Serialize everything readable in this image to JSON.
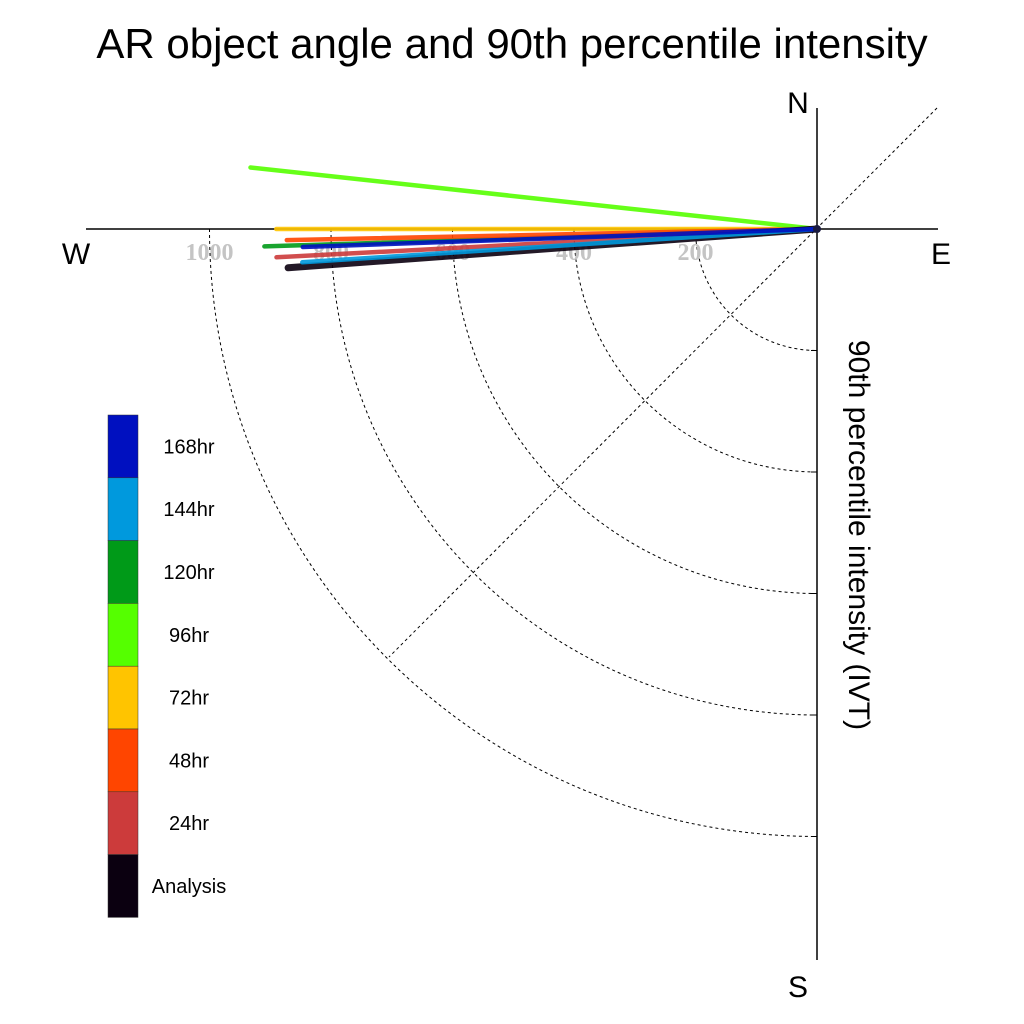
{
  "chart_data": {
    "type": "polar-vector",
    "title": "AR object angle and 90th percentile intensity",
    "radial_label": "90th percentile intensity (IVT)",
    "compass": {
      "north": "N",
      "east": "E",
      "south": "S",
      "west": "W"
    },
    "radial_ticks": [
      200,
      400,
      600,
      800,
      1000
    ],
    "radial_tick_labels": [
      "200",
      "400",
      "600",
      "800",
      "1000"
    ],
    "r_max": 1200,
    "angle_convention": "degrees counter-clockwise from west (positive = north of west, negative = south of west)",
    "series": [
      {
        "name": "Analysis",
        "color": "#0b0010",
        "angle": -4.2,
        "intensity": 873
      },
      {
        "name": "24hr",
        "color": "#cc3b3b",
        "angle": -3.0,
        "intensity": 891
      },
      {
        "name": "48hr",
        "color": "#ff4500",
        "angle": -1.2,
        "intensity": 873
      },
      {
        "name": "72hr",
        "color": "#ffc400",
        "angle": 0.0,
        "intensity": 890
      },
      {
        "name": "96hr",
        "color": "#55ff00",
        "angle": 6.2,
        "intensity": 938
      },
      {
        "name": "120hr",
        "color": "#009a18",
        "angle": -1.8,
        "intensity": 910
      },
      {
        "name": "144hr",
        "color": "#0099dd",
        "angle": -3.7,
        "intensity": 849
      },
      {
        "name": "168hr",
        "color": "#0010c0",
        "angle": -2.0,
        "intensity": 847
      }
    ],
    "legend": {
      "placement": "left",
      "entries": [
        {
          "label": "168hr",
          "color": "#0010c0"
        },
        {
          "label": "144hr",
          "color": "#0099dd"
        },
        {
          "label": "120hr",
          "color": "#009a18"
        },
        {
          "label": "96hr",
          "color": "#55ff00"
        },
        {
          "label": "72hr",
          "color": "#ffc400"
        },
        {
          "label": "48hr",
          "color": "#ff4500"
        },
        {
          "label": "24hr",
          "color": "#cc3b3b"
        },
        {
          "label": "Analysis",
          "color": "#0b0010"
        }
      ]
    }
  }
}
